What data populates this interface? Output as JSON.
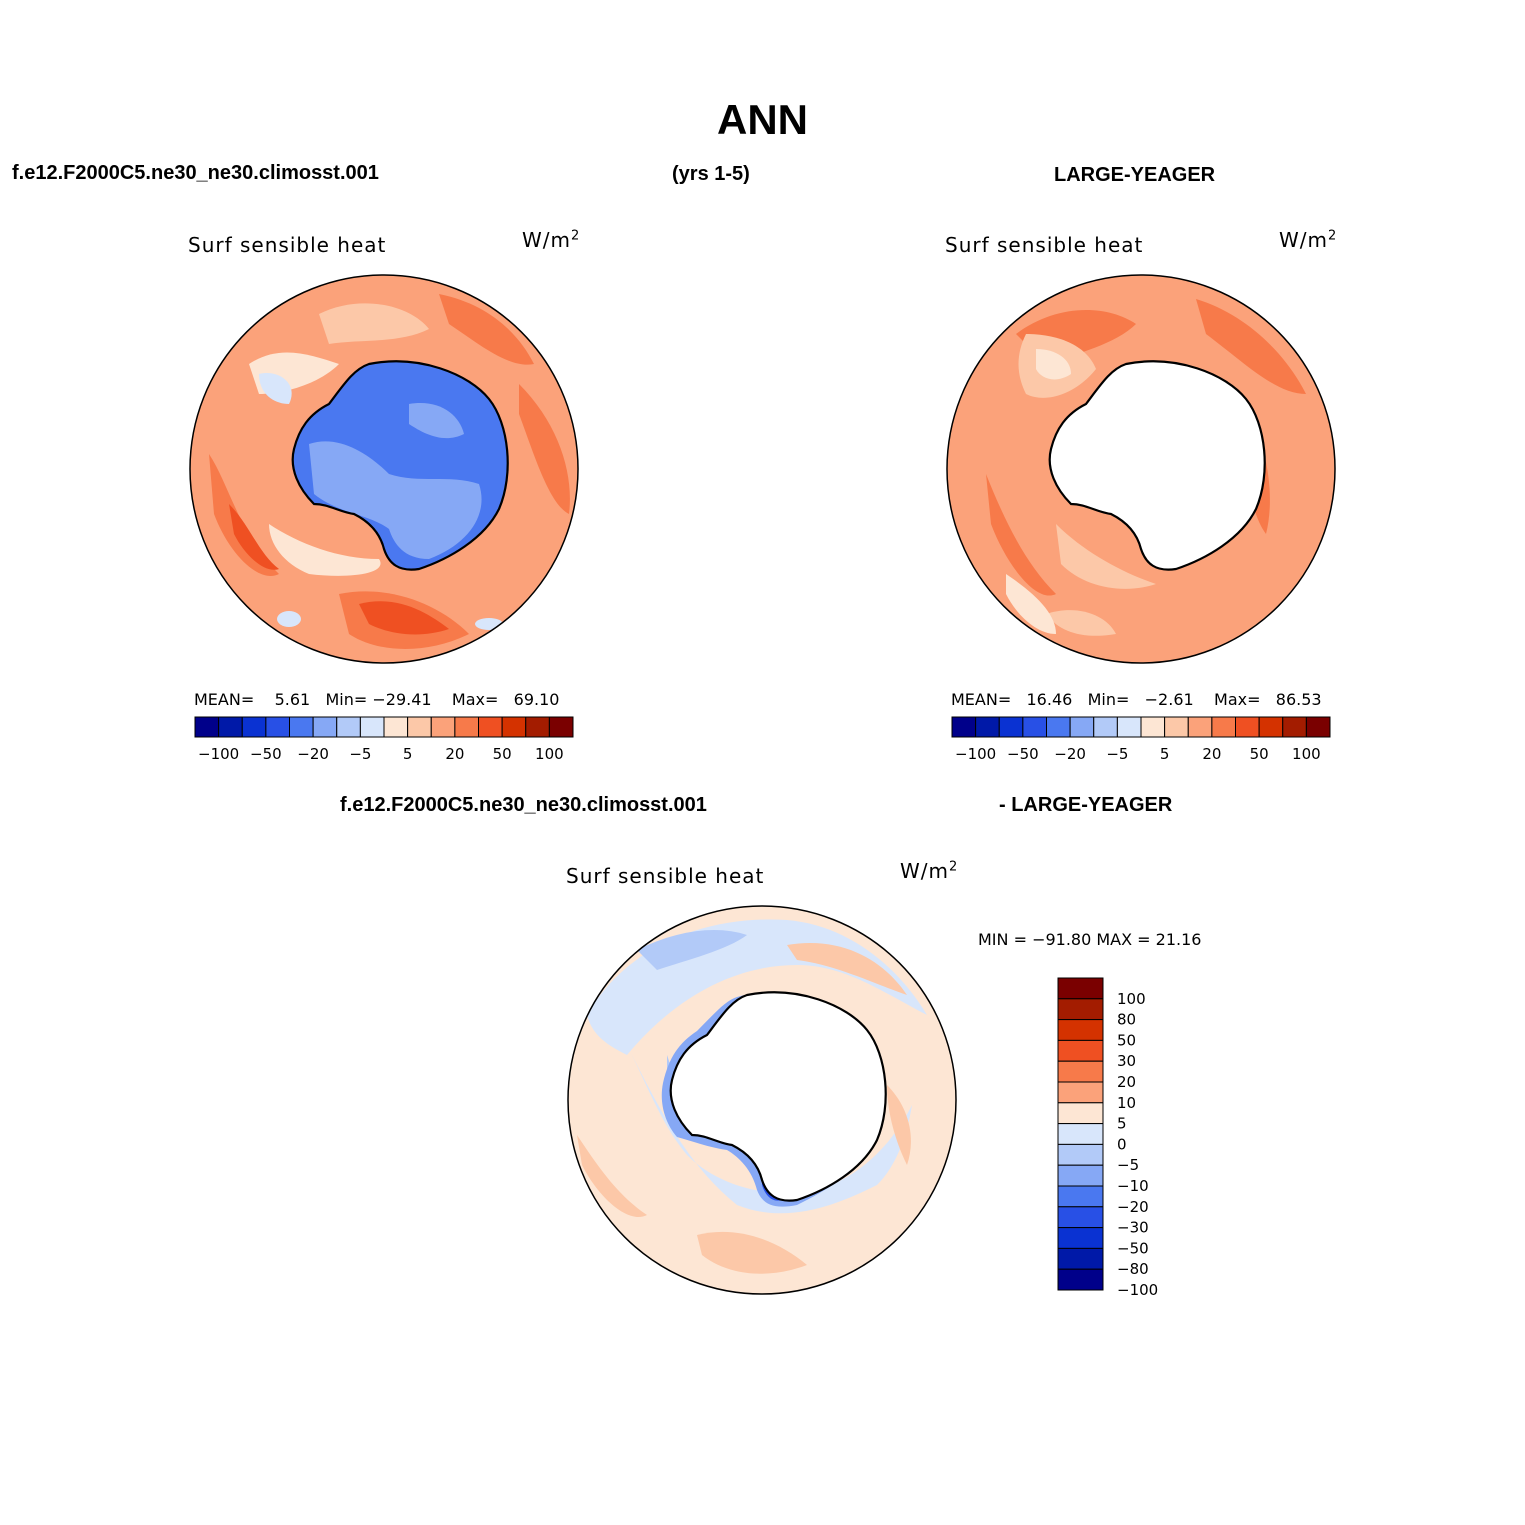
{
  "title": "ANN",
  "header": {
    "case_name": "f.e12.F2000C5.ne30_ne30.climosst.001",
    "years": "(yrs 1-5)",
    "obs_name": "LARGE-YEAGER"
  },
  "panels": [
    {
      "variable": "Surf  sensible  heat",
      "units": "W/m",
      "units_exp": "2",
      "mean_label": "MEAN=",
      "mean": "5.61",
      "min_label": "Min=",
      "min": "−29.41",
      "max_label": "Max=",
      "max": "69.10"
    },
    {
      "variable": "Surf  sensible  heat",
      "units": "W/m",
      "units_exp": "2",
      "mean_label": "MEAN=",
      "mean": "16.46",
      "min_label": "Min=",
      "min": "−2.61",
      "max_label": "Max=",
      "max": "86.53"
    }
  ],
  "horizontal_colorbar": {
    "colors": [
      "#00008a",
      "#0019a8",
      "#0a32d2",
      "#2850e6",
      "#4a78f0",
      "#86a8f5",
      "#b2caf8",
      "#d8e6fb",
      "#fde6d4",
      "#fcc8a8",
      "#fba27a",
      "#f77a4a",
      "#ef5022",
      "#d43200",
      "#a31c00",
      "#7a0000"
    ],
    "ticks": [
      "−100",
      "−50",
      "−20",
      "−5",
      "5",
      "20",
      "50",
      "100"
    ]
  },
  "difference": {
    "title_left": "f.e12.F2000C5.ne30_ne30.climosst.001",
    "title_right": "- LARGE-YEAGER",
    "variable": "Surf  sensible  heat",
    "units": "W/m",
    "units_exp": "2",
    "minmax": "MIN = −91.80 MAX =  21.16",
    "colorbar": {
      "colors": [
        "#7a0000",
        "#a31c00",
        "#d43200",
        "#ef5022",
        "#f77a4a",
        "#fba27a",
        "#fde6d4",
        "#d8e6fb",
        "#b2caf8",
        "#86a8f5",
        "#4a78f0",
        "#2850e6",
        "#0a32d2",
        "#0019a8",
        "#00008a"
      ],
      "ticks": [
        "100",
        "80",
        "50",
        "30",
        "20",
        "10",
        "5",
        "0",
        "−5",
        "−10",
        "−20",
        "−30",
        "−50",
        "−80",
        "−100"
      ]
    }
  }
}
